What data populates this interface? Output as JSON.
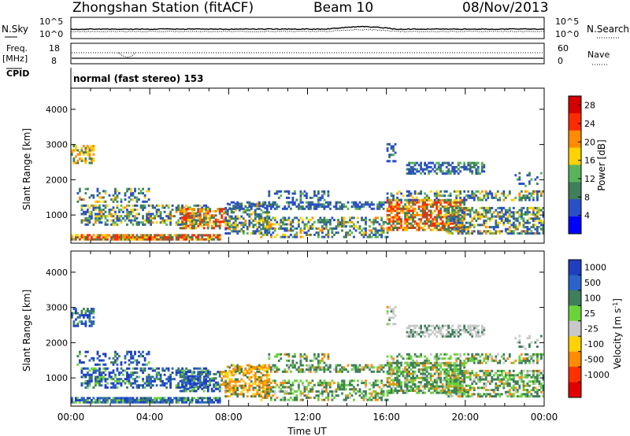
{
  "header": {
    "station": "Zhongshan Station (fitACF)",
    "beam": "Beam 10",
    "date": "08/Nov/2013"
  },
  "noise_panel": {
    "left_label": "N.Sky",
    "right_label": "N.Search",
    "left_ticks": [
      "10^5",
      "10^0"
    ],
    "right_ticks": [
      "10^5",
      "10^0"
    ]
  },
  "freq_panel": {
    "left_label_1": "Freq.",
    "left_label_2": "[MHz]",
    "right_label": "Nave",
    "left_ticks": [
      "18",
      "8"
    ],
    "right_ticks": [
      "60",
      "0"
    ]
  },
  "cpid_panel": {
    "label": "CPID",
    "mode_text": "normal (fast stereo) 153"
  },
  "colors": {
    "power": [
      "#0000ff",
      "#2a4fc7",
      "#3f7f5a",
      "#58b35c",
      "#ffd200",
      "#ff8c00",
      "#ff2b00",
      "#d40000"
    ],
    "velocity": [
      "#1f3fbf",
      "#2a64c8",
      "#3f7f5a",
      "#6bd33a",
      "#c8c8c8",
      "#ffd200",
      "#ff8c00",
      "#ff3000",
      "#e00000"
    ]
  },
  "chart_data": [
    {
      "type": "heatmap",
      "title": "Power",
      "ylabel": "Slant Range [km]",
      "xlabel": "",
      "x_ticks": [
        "00:00",
        "04:00",
        "08:00",
        "12:00",
        "16:00",
        "20:00",
        "00:00"
      ],
      "y_ticks": [
        "1000",
        "2000",
        "3000",
        "4000"
      ],
      "ylim": [
        200,
        4600
      ],
      "xlim_hours": [
        0,
        24
      ],
      "colorbar_label": "Power [dB]",
      "colorbar_ticks": [
        "4",
        "8",
        "12",
        "16",
        "20",
        "24",
        "28"
      ],
      "colorbar_range": [
        0,
        30
      ]
    },
    {
      "type": "heatmap",
      "title": "Velocity",
      "ylabel": "Slant Range [km]",
      "xlabel": "Time UT",
      "x_ticks": [
        "00:00",
        "04:00",
        "08:00",
        "12:00",
        "16:00",
        "20:00",
        "00:00"
      ],
      "y_ticks": [
        "1000",
        "2000",
        "3000",
        "4000"
      ],
      "ylim": [
        200,
        4600
      ],
      "xlim_hours": [
        0,
        24
      ],
      "colorbar_label": "Velocity [m s^-1]",
      "colorbar_ticks": [
        "1000",
        "500",
        "100",
        "25",
        "-25",
        "-100",
        "-500",
        "-1000"
      ]
    }
  ]
}
